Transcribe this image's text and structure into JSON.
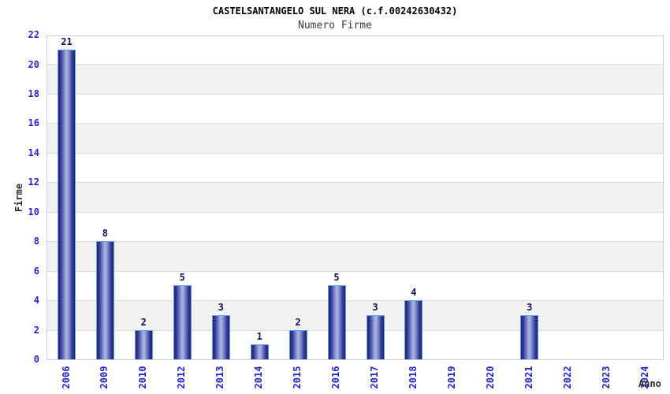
{
  "chart_data": {
    "type": "bar",
    "title": "CASTELSANTANGELO SUL NERA (c.f.00242630432)",
    "subtitle": "Numero Firme",
    "xlabel": "Anno",
    "ylabel": "Firme",
    "categories": [
      "2006",
      "2009",
      "2010",
      "2012",
      "2013",
      "2014",
      "2015",
      "2016",
      "2017",
      "2018",
      "2019",
      "2020",
      "2021",
      "2022",
      "2023",
      "2024"
    ],
    "values": [
      21,
      8,
      2,
      5,
      3,
      1,
      2,
      5,
      3,
      4,
      0,
      0,
      3,
      0,
      0,
      0
    ],
    "ylim": [
      0,
      22
    ],
    "ytick_step": 2,
    "grid": "horizontal-bands-alternating",
    "legend": "none",
    "value_labels_shown_only_for_nonzero": true,
    "colors": {
      "title": "#000000",
      "subtitle": "#3a3a3a",
      "tick_label": "#2323cd",
      "value_label": "#0e0e55",
      "axis_title": "#2b2b2b",
      "band_gray": "#f2f2f2",
      "gridline": "#dcdcdc",
      "plot_border": "#cfcfcf",
      "bar_border": "#5f9ddd",
      "bar_edge": "#23266f",
      "bar_mid": "#30389a",
      "bar_light": "#98a2d8",
      "bar_highlight": "#aeb6e2"
    }
  }
}
